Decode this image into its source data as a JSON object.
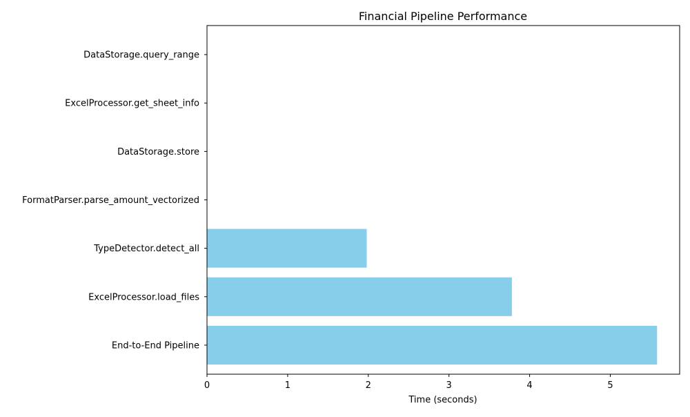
{
  "chart_data": {
    "type": "bar",
    "orientation": "horizontal",
    "title": "Financial Pipeline Performance",
    "xlabel": "Time (seconds)",
    "ylabel": "",
    "categories": [
      "End-to-End Pipeline",
      "ExcelProcessor.load_files",
      "TypeDetector.detect_all",
      "FormatParser.parse_amount_vectorized",
      "DataStorage.store",
      "ExcelProcessor.get_sheet_info",
      "DataStorage.query_range"
    ],
    "values": [
      5.58,
      3.78,
      1.98,
      0.0,
      0.0,
      0.0,
      0.0
    ],
    "xlim": [
      0,
      5.86
    ],
    "xticks": [
      "0",
      "1",
      "2",
      "3",
      "4",
      "5"
    ],
    "grid": false,
    "bar_color": "#87ceeb"
  }
}
